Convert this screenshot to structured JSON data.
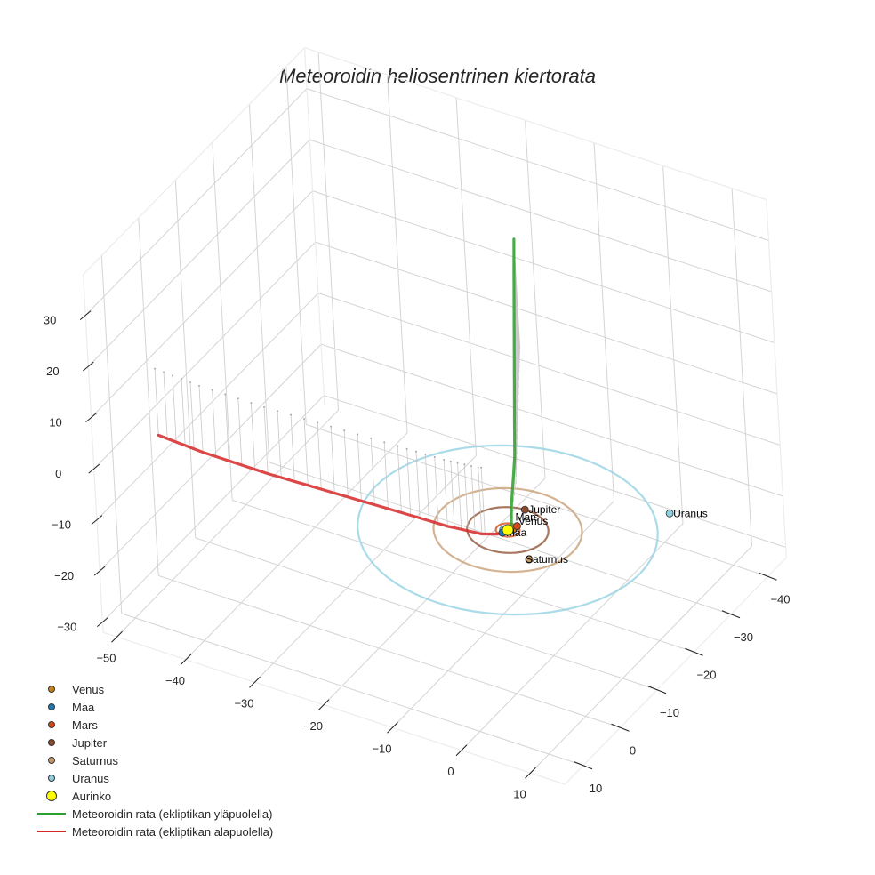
{
  "chart_data": {
    "type": "line3d",
    "title": "Meteoroidin heliosentrinen kiertorata",
    "axes": {
      "x": {
        "label": "",
        "ticks": [
          -50,
          -40,
          -30,
          -20,
          -10,
          0,
          10
        ],
        "range": [
          -52,
          15
        ]
      },
      "y": {
        "label": "",
        "ticks": [
          -40,
          -30,
          -20,
          -10,
          0,
          10
        ],
        "range": [
          -45,
          15
        ]
      },
      "z": {
        "label": "",
        "ticks": [
          -30,
          -20,
          -10,
          0,
          10,
          20,
          30
        ],
        "range": [
          -32,
          38
        ]
      },
      "grid": true
    },
    "legend_position": "lower left",
    "planets": [
      {
        "name": "Venus",
        "color": "#c88418",
        "orbit_radius": 0.72,
        "pos": [
          0.5,
          -0.5,
          0
        ]
      },
      {
        "name": "Maa",
        "color": "#1f77b4",
        "orbit_radius": 1.0,
        "pos": [
          -0.3,
          0.9,
          0
        ]
      },
      {
        "name": "Mars",
        "color": "#d24a17",
        "orbit_radius": 1.52,
        "pos": [
          0.6,
          -1.4,
          0
        ]
      },
      {
        "name": "Jupiter",
        "color": "#8b4a2b",
        "orbit_radius": 5.2,
        "pos": [
          -0.3,
          -5.2,
          0
        ]
      },
      {
        "name": "Saturnus",
        "color": "#c49a6c",
        "orbit_radius": 9.5,
        "pos": [
          5.5,
          4.5,
          0
        ]
      },
      {
        "name": "Uranus",
        "color": "#8ecfe0",
        "orbit_radius": 19.2,
        "pos": [
          16,
          -14,
          0
        ]
      }
    ],
    "sun": {
      "name": "Aurinko",
      "color": "#ffff00",
      "pos": [
        0,
        0,
        0
      ]
    },
    "series": [
      {
        "name": "Meteoroidin rata (ekliptikan yläpuolella)",
        "color": "#2ca02c",
        "points": [
          [
            0,
            -1,
            0
          ],
          [
            -1,
            -3,
            2
          ],
          [
            -3,
            -8,
            7
          ],
          [
            -6,
            -14,
            13
          ],
          [
            -9,
            -20,
            19
          ],
          [
            -12,
            -26,
            25
          ],
          [
            -14,
            -30,
            28.5
          ]
        ]
      },
      {
        "name": "Meteoroidin rata (ekliptikan alapuolella)",
        "color": "#d62728",
        "points": [
          [
            0,
            0,
            0
          ],
          [
            -1,
            1,
            -0.5
          ],
          [
            -3,
            1.5,
            -1
          ],
          [
            -8,
            1.5,
            -1.7
          ],
          [
            -15,
            1,
            -2.5
          ],
          [
            -25,
            0.5,
            -3.5
          ],
          [
            -35,
            0,
            -4.5
          ],
          [
            -45,
            -1,
            -5.5
          ],
          [
            -52,
            -2,
            -6
          ]
        ]
      }
    ]
  },
  "legend": {
    "items": [
      {
        "label": "Venus",
        "kind": "dot",
        "color": "#c88418",
        "size": 8
      },
      {
        "label": "Maa",
        "kind": "dot",
        "color": "#1f77b4",
        "size": 8
      },
      {
        "label": "Mars",
        "kind": "dot",
        "color": "#d24a17",
        "size": 8
      },
      {
        "label": "Jupiter",
        "kind": "dot",
        "color": "#8b4a2b",
        "size": 8
      },
      {
        "label": "Saturnus",
        "kind": "dot",
        "color": "#c49a6c",
        "size": 8
      },
      {
        "label": "Uranus",
        "kind": "dot",
        "color": "#8ecfe0",
        "size": 8
      },
      {
        "label": "Aurinko",
        "kind": "dot",
        "color": "#ffff00",
        "size": 12
      },
      {
        "label": "Meteoroidin rata (ekliptikan yläpuolella)",
        "kind": "line",
        "color": "#2ca02c"
      },
      {
        "label": "Meteoroidin rata (ekliptikan alapuolella)",
        "kind": "line",
        "color": "#d62728"
      }
    ]
  }
}
